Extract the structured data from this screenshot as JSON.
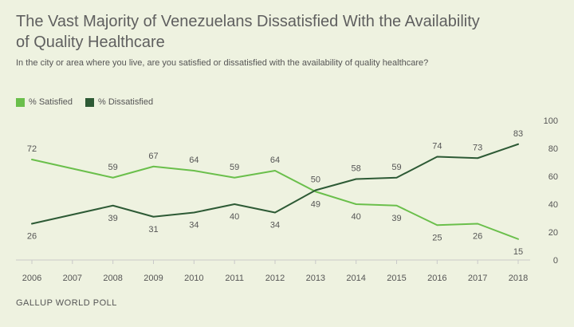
{
  "title": "The Vast Majority of Venezuelans Dissatisfied With the Availability of Quality Healthcare",
  "subtitle": "In the city or area where you live, are you satisfied or dissatisfied with the availability of quality healthcare?",
  "source": "GALLUP WORLD POLL",
  "chart_data": {
    "type": "line",
    "title": "The Vast Majority of Venezuelans Dissatisfied With the Availability of Quality Healthcare",
    "subtitle": "In the city or area where you live, are you satisfied or dissatisfied with the availability of quality healthcare?",
    "x": [
      2006,
      2007,
      2008,
      2009,
      2010,
      2011,
      2012,
      2013,
      2014,
      2015,
      2016,
      2017,
      2018
    ],
    "x_tick_labels": [
      "2006",
      "2007",
      "2008",
      "2009",
      "2010",
      "2011",
      "2012",
      "2013",
      "2014",
      "2015",
      "2016",
      "2017",
      "2018"
    ],
    "series": [
      {
        "name": "% Satisfied",
        "color": "#6abf4b",
        "values": [
          72,
          null,
          59,
          67,
          64,
          59,
          64,
          49,
          40,
          39,
          25,
          26,
          15
        ]
      },
      {
        "name": "% Dissatisfied",
        "color": "#2d5a35",
        "values": [
          26,
          null,
          39,
          31,
          34,
          40,
          34,
          50,
          58,
          59,
          74,
          73,
          83
        ]
      }
    ],
    "ylim": [
      0,
      100
    ],
    "y_ticks": [
      0,
      20,
      40,
      60,
      80,
      100
    ],
    "y_axis_side": "right",
    "grid": false,
    "legend_position": "top-left"
  }
}
